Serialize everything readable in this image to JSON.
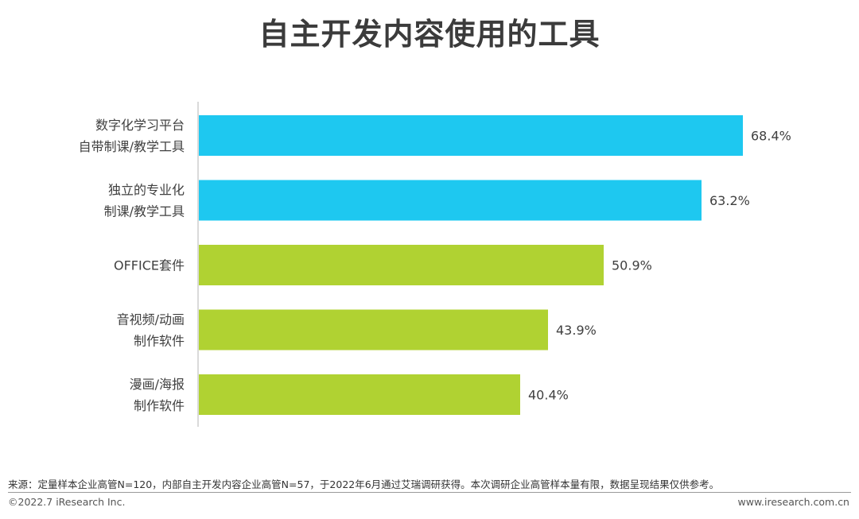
{
  "chart_data": {
    "type": "bar",
    "orientation": "horizontal",
    "title": "自主开发内容使用的工具",
    "categories": [
      [
        "数字化学习平台",
        "自带制课/教学工具"
      ],
      [
        "独立的专业化",
        "制课/教学工具"
      ],
      [
        "OFFICE套件"
      ],
      [
        "音视频/动画",
        "制作软件"
      ],
      [
        "漫画/海报",
        "制作软件"
      ]
    ],
    "values": [
      68.4,
      63.2,
      50.9,
      43.9,
      40.4
    ],
    "value_labels": [
      "68.4%",
      "63.2%",
      "50.9%",
      "43.9%",
      "40.4%"
    ],
    "bar_colors": [
      "#1ec8f0",
      "#1ec8f0",
      "#b0d232",
      "#b0d232",
      "#b0d232"
    ],
    "xlim": [
      0,
      70
    ],
    "xlabel": "",
    "ylabel": "",
    "grid": false,
    "legend": "none"
  },
  "footer": {
    "source": "来源：定量样本企业高管N=120，内部自主开发内容企业高管N=57，于2022年6月通过艾瑞调研获得。本次调研企业高管样本量有限，数据呈现结果仅供参考。",
    "copyright": "©2022.7 iResearch Inc.",
    "website": "www.iresearch.com.cn"
  }
}
